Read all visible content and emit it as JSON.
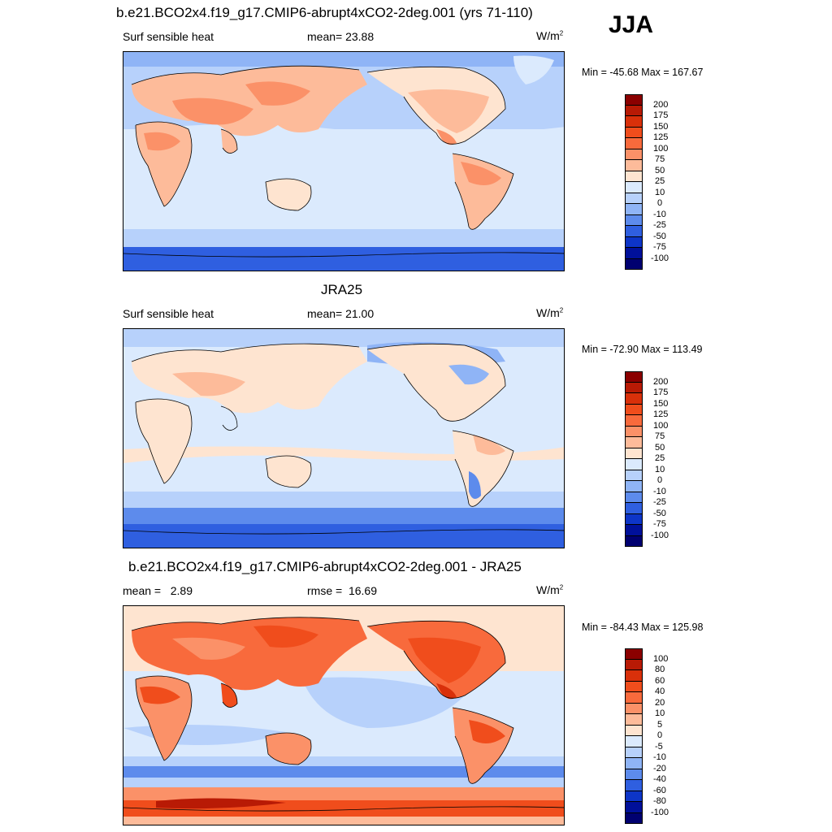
{
  "season": "JJA",
  "panels": [
    {
      "title": "b.e21.BCO2x4.f19_g17.CMIP6-abrupt4xCO2-2deg.001 (yrs 71-110)",
      "left_label": "Surf sensible heat",
      "center_label": "mean=  23.88",
      "units": "W/m",
      "minmax": "Min = -45.68 Max = 167.67",
      "colorbar_levels": [
        "200",
        "175",
        "150",
        "125",
        "100",
        "75",
        "50",
        "25",
        "10",
        "0",
        "-10",
        "-25",
        "-50",
        "-75",
        "-100"
      ]
    },
    {
      "title": "JRA25",
      "left_label": "Surf sensible heat",
      "center_label": "mean=  21.00",
      "units": "W/m",
      "minmax": "Min = -72.90 Max = 113.49",
      "colorbar_levels": [
        "200",
        "175",
        "150",
        "125",
        "100",
        "75",
        "50",
        "25",
        "10",
        "0",
        "-10",
        "-25",
        "-50",
        "-75",
        "-100"
      ]
    },
    {
      "title": "b.e21.BCO2x4.f19_g17.CMIP6-abrupt4xCO2-2deg.001 - JRA25",
      "left_label": "mean =   2.89",
      "center_label": "rmse =  16.69",
      "units": "W/m",
      "minmax": "Min = -84.43 Max = 125.98",
      "colorbar_levels": [
        "100",
        "80",
        "60",
        "40",
        "20",
        "10",
        "5",
        "0",
        "-5",
        "-10",
        "-20",
        "-40",
        "-60",
        "-80",
        "-100"
      ]
    }
  ],
  "colors": {
    "scale": [
      "#8b0000",
      "#b81a05",
      "#d9300a",
      "#f04d1c",
      "#f86a3c",
      "#fb9168",
      "#fdbb9a",
      "#fee4d0",
      "#dbeafd",
      "#b7d1fb",
      "#8fb4f6",
      "#5d8bec",
      "#2f5fe0",
      "#0d35c8",
      "#00109a",
      "#000070"
    ]
  }
}
